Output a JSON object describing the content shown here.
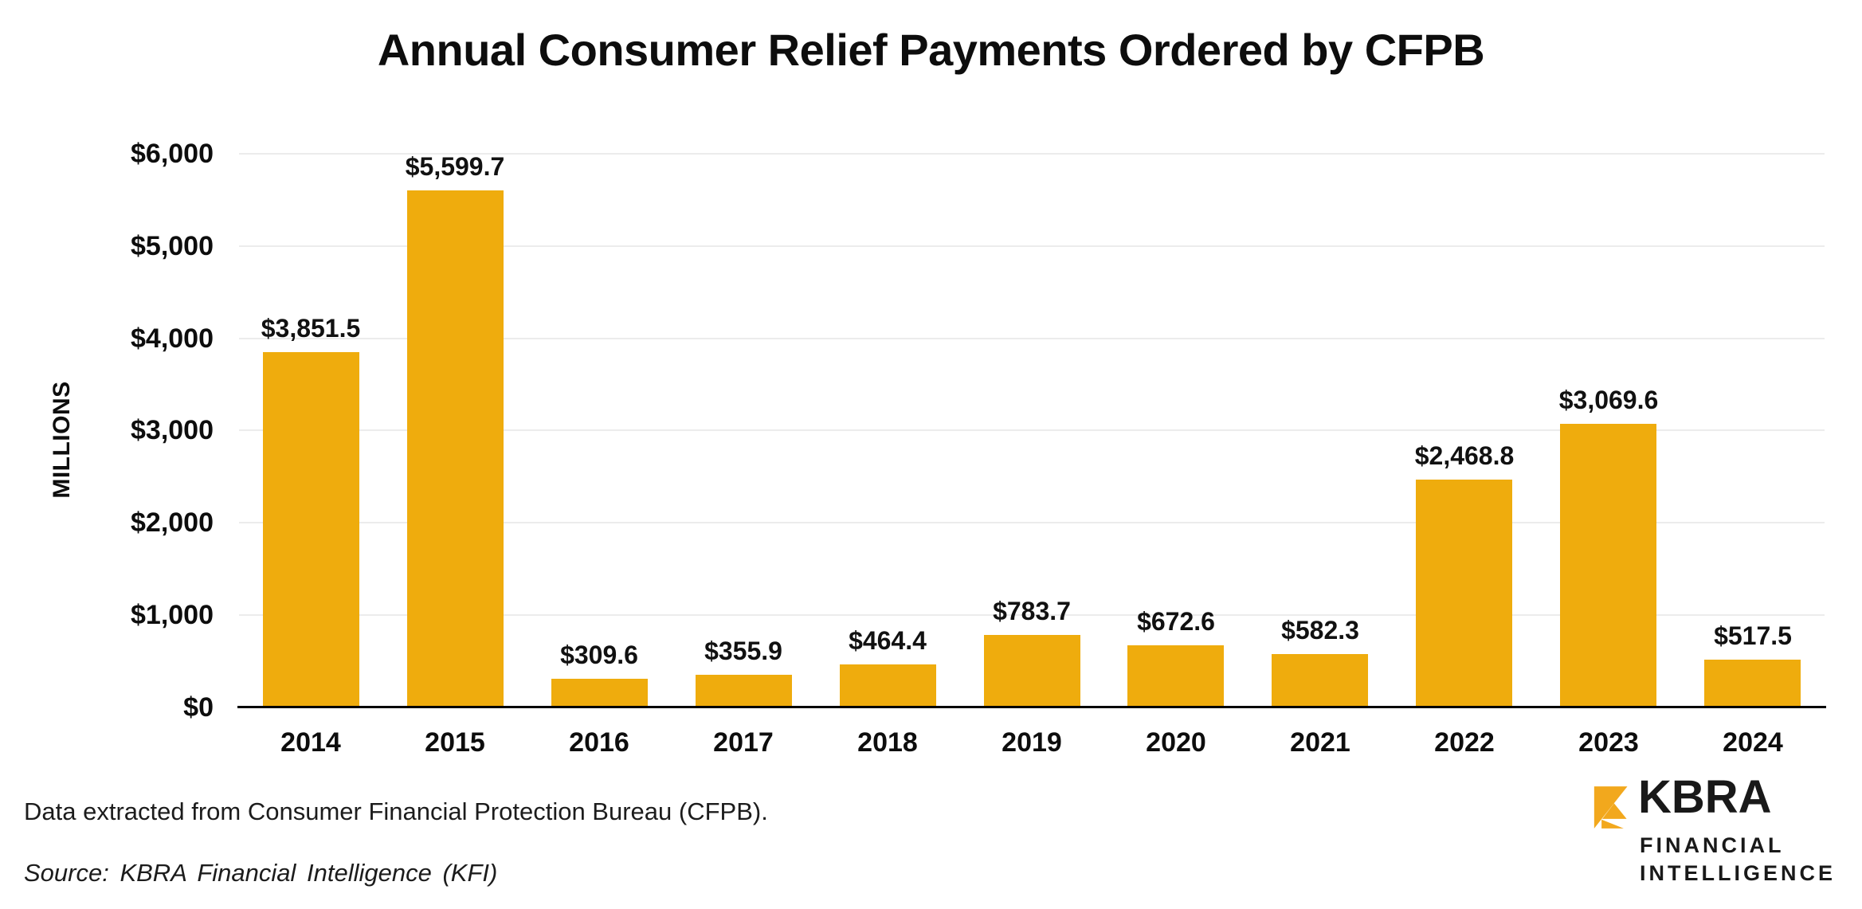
{
  "title": "Annual Consumer Relief Payments Ordered by CFPB",
  "y_axis": {
    "label": "MILLIONS",
    "ticks": [
      "$0",
      "$1,000",
      "$2,000",
      "$3,000",
      "$4,000",
      "$5,000",
      "$6,000"
    ]
  },
  "chart_data": {
    "type": "bar",
    "title": "Annual Consumer Relief Payments Ordered by CFPB",
    "xlabel": "",
    "ylabel": "MILLIONS",
    "ylim": [
      0,
      6000
    ],
    "grid": "horizontal",
    "legend": "none",
    "categories": [
      "2014",
      "2015",
      "2016",
      "2017",
      "2018",
      "2019",
      "2020",
      "2021",
      "2022",
      "2023",
      "2024"
    ],
    "values": [
      3851.5,
      5599.7,
      309.6,
      355.9,
      464.4,
      783.7,
      672.6,
      582.3,
      2468.8,
      3069.6,
      517.5
    ],
    "bar_labels": [
      "$3,851.5",
      "$5,599.7",
      "$309.6",
      "$355.9",
      "$464.4",
      "$783.7",
      "$672.6",
      "$582.3",
      "$2,468.8",
      "$3,069.6",
      "$517.5"
    ],
    "y_tick_values": [
      0,
      1000,
      2000,
      3000,
      4000,
      5000,
      6000
    ],
    "y_tick_labels": [
      "$0",
      "$1,000",
      "$2,000",
      "$3,000",
      "$4,000",
      "$5,000",
      "$6,000"
    ]
  },
  "footnotes": {
    "data_note": "Data extracted from Consumer Financial Protection Bureau (CFPB).",
    "source_note": "Source: KBRA Financial  Intelligence  (KFI)"
  },
  "logo": {
    "wordmark": "KBRA",
    "line1": "FINANCIAL",
    "line2": "INTELLIGENCE"
  },
  "colors": {
    "bar": "#EFAC0D",
    "gridline": "#ECECEC",
    "axis": "#000000",
    "background": "#FFFFFF",
    "text": "#111111",
    "logo_gold": "#F2A81D",
    "logo_text": "#191919"
  }
}
